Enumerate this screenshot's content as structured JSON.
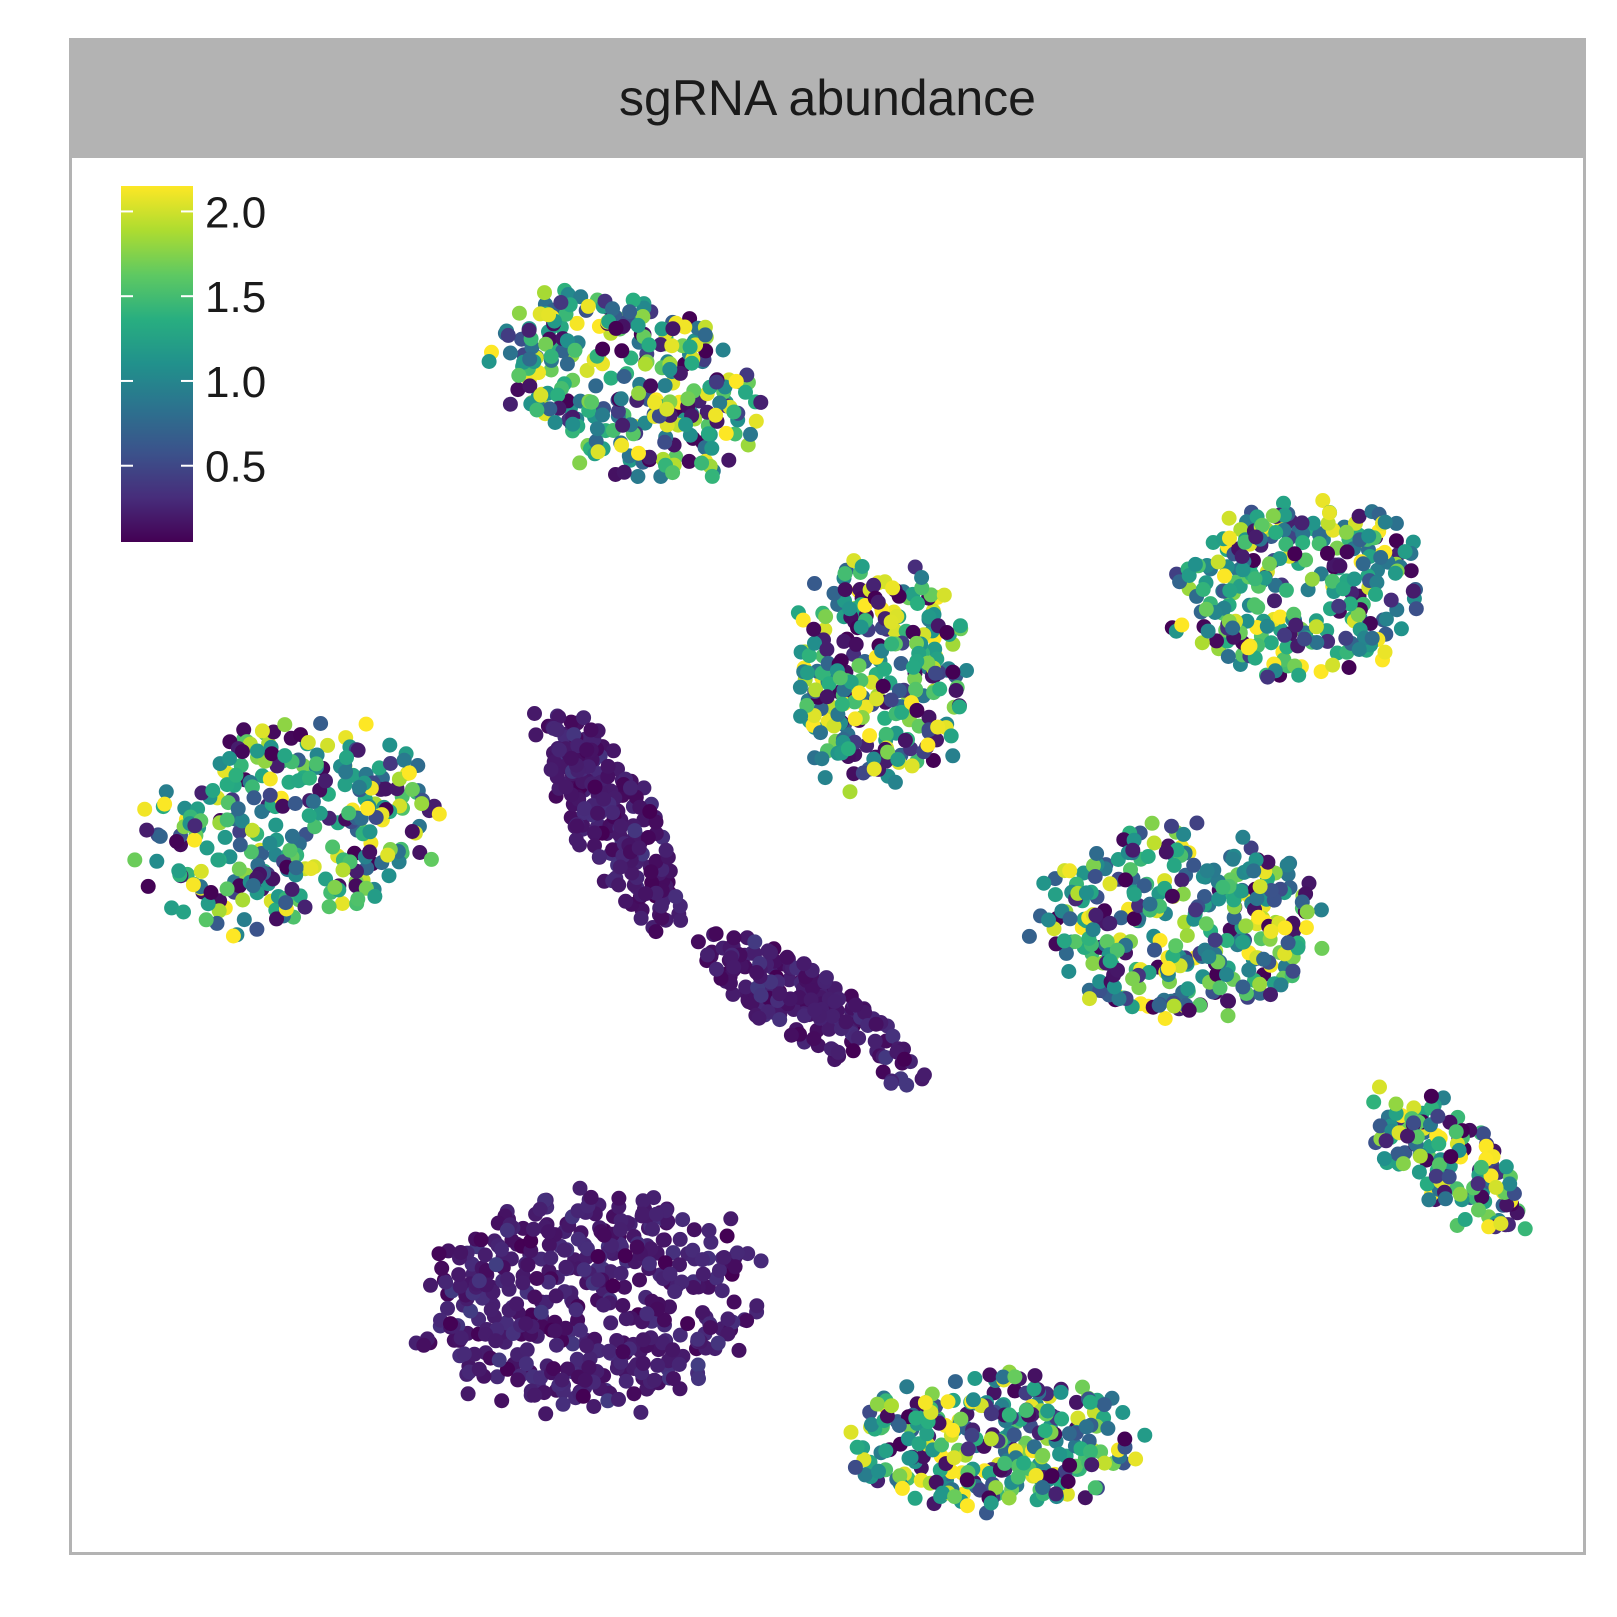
{
  "panel": {
    "strip_title": "sgRNA abundance"
  },
  "chart_data": {
    "type": "scatter",
    "title": "sgRNA abundance",
    "xlabel": "",
    "ylabel": "",
    "axes_visible": false,
    "grid": false,
    "color_scale": {
      "name": "viridis",
      "colors": [
        "#440154",
        "#472d7b",
        "#3b528b",
        "#2c728e",
        "#21918c",
        "#28ae80",
        "#5ec962",
        "#addc30",
        "#fde725"
      ],
      "range": [
        0.05,
        2.15
      ],
      "ticks": [
        0.5,
        1.0,
        1.5,
        2.0
      ],
      "tick_labels": [
        "0.5",
        "1.0",
        "1.5",
        "2.0"
      ],
      "legend_position": "top-left-inside"
    },
    "clusters": [
      {
        "id": "cluster-top",
        "center": [
          -12,
          34
        ],
        "spread": [
          8.5,
          6.0
        ],
        "rotation": -35,
        "n": 300,
        "value_mean": 1.15,
        "value_sd": 0.55
      },
      {
        "id": "cluster-top-middle",
        "center": [
          3,
          13
        ],
        "spread": [
          5.5,
          8.0
        ],
        "rotation": 0,
        "n": 280,
        "value_mean": 1.15,
        "value_sd": 0.55
      },
      {
        "id": "cluster-top-right",
        "center": [
          28,
          19
        ],
        "spread": [
          7.5,
          6.5
        ],
        "rotation": 15,
        "n": 280,
        "value_mean": 1.15,
        "value_sd": 0.55
      },
      {
        "id": "cluster-left",
        "center": [
          -32,
          2
        ],
        "spread": [
          9.0,
          7.0
        ],
        "rotation": 25,
        "n": 300,
        "value_mean": 1.2,
        "value_sd": 0.5
      },
      {
        "id": "cluster-right-middle",
        "center": [
          21,
          -5
        ],
        "spread": [
          8.5,
          7.0
        ],
        "rotation": 0,
        "n": 330,
        "value_mean": 1.15,
        "value_sd": 0.55
      },
      {
        "id": "cluster-far-right",
        "center": [
          37,
          -22
        ],
        "spread": [
          6.5,
          3.0
        ],
        "rotation": -50,
        "n": 140,
        "value_mean": 1.15,
        "value_sd": 0.55
      },
      {
        "id": "cluster-bottom-right",
        "center": [
          10,
          -42
        ],
        "spread": [
          8.5,
          5.0
        ],
        "rotation": 0,
        "n": 300,
        "value_mean": 1.15,
        "value_sd": 0.55
      },
      {
        "id": "cluster-low-center-upper",
        "center": [
          -13,
          3
        ],
        "spread": [
          9.0,
          2.5
        ],
        "rotation": -65,
        "n": 220,
        "value_mean": 0.2,
        "value_sd": 0.08
      },
      {
        "id": "cluster-low-center-lower",
        "center": [
          -1,
          -11
        ],
        "spread": [
          8.0,
          2.5
        ],
        "rotation": -40,
        "n": 190,
        "value_mean": 0.2,
        "value_sd": 0.08
      },
      {
        "id": "cluster-low-bottom-left",
        "center": [
          -14,
          -32
        ],
        "spread": [
          10.0,
          8.0
        ],
        "rotation": 10,
        "n": 450,
        "value_mean": 0.22,
        "value_sd": 0.08
      }
    ],
    "xlim": [
      -45,
      45
    ],
    "ylim": [
      -50,
      50
    ],
    "point_count_approx": 2800
  }
}
